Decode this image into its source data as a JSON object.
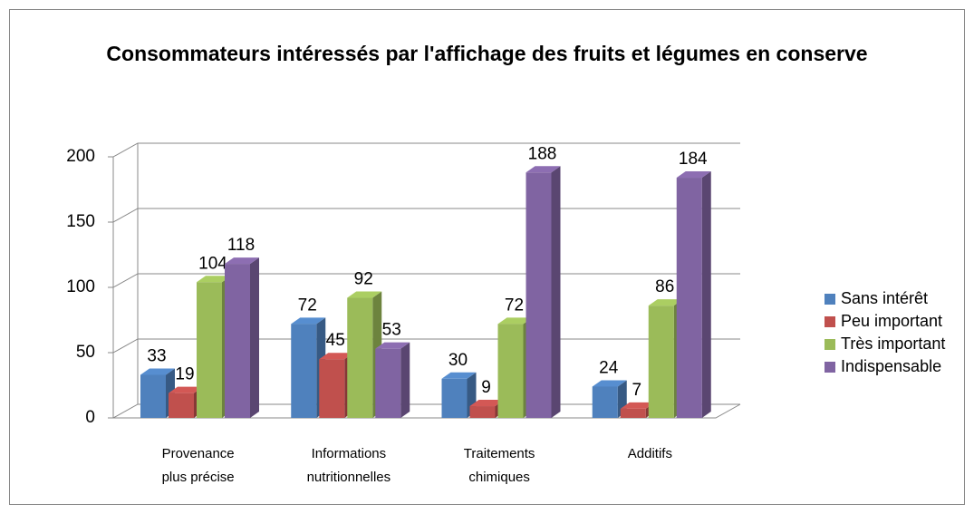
{
  "chart_data": {
    "type": "bar3d",
    "title": "Consommateurs intéressés par l'affichage des fruits et légumes en conserve",
    "categories": [
      "Provenance plus précise",
      "Informations nutritionnelles",
      "Traitements chimiques",
      "Additifs"
    ],
    "series": [
      {
        "name": "Sans intérêt",
        "color": "#4f81bd",
        "values": [
          33,
          72,
          30,
          24
        ]
      },
      {
        "name": "Peu important",
        "color": "#c0504d",
        "values": [
          19,
          45,
          9,
          7
        ]
      },
      {
        "name": "Très important",
        "color": "#9bbb59",
        "values": [
          104,
          92,
          72,
          86
        ]
      },
      {
        "name": "Indispensable",
        "color": "#8064a2",
        "values": [
          118,
          53,
          188,
          184
        ]
      }
    ],
    "ylim": [
      0,
      200
    ],
    "yticks": [
      0,
      50,
      100,
      150,
      200
    ],
    "grid": true,
    "legend": "right"
  }
}
